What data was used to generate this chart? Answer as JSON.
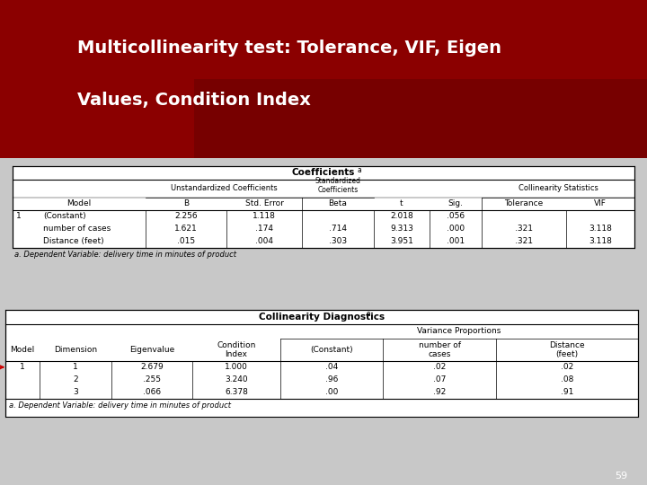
{
  "title_line1": "Multicollinearity test: Tolerance, VIF, Eigen",
  "title_line2": "Values, Condition Index",
  "slide_number": "59",
  "header_color": "#8B0000",
  "body_bg": "#C8C8C8",
  "table1_title": "Coefficients",
  "table1_title_super": "a",
  "table1_footnote": "a. Dependent Variable: delivery time in minutes of product",
  "table1_rows": [
    [
      "1",
      "(Constant)",
      "2.256",
      "1.118",
      "",
      "2.018",
      ".056",
      "",
      ""
    ],
    [
      "",
      "number of cases",
      "1.621",
      ".174",
      ".714",
      "9.313",
      ".000",
      ".321",
      "3.118"
    ],
    [
      "",
      "Distance (feet)",
      ".015",
      ".004",
      ".303",
      "3.951",
      ".001",
      ".321",
      "3.118"
    ]
  ],
  "table2_title": "Collinearity Diagnostics",
  "table2_title_super": "a",
  "table2_footnote": "a. Dependent Variable: delivery time in minutes of product",
  "table2_rows": [
    [
      "1",
      "1",
      "2.679",
      "1.000",
      ".04",
      ".02",
      ".02"
    ],
    [
      "",
      "2",
      ".255",
      "3.240",
      ".96",
      ".07",
      ".08"
    ],
    [
      "",
      "3",
      ".066",
      "6.378",
      ".00",
      ".92",
      ".91"
    ]
  ]
}
